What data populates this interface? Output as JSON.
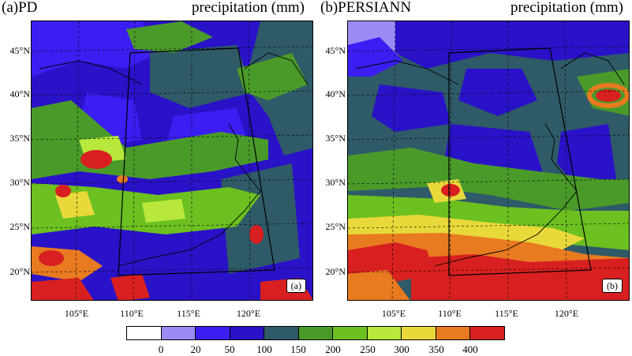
{
  "panels": [
    {
      "title": "(a)PD",
      "variable": "precipitation (mm)",
      "tag": "(a)"
    },
    {
      "title": "(b)PERSIANN",
      "variable": "precipitation (mm)",
      "tag": "(b)"
    }
  ],
  "lat_labels": [
    "45°N",
    "40°N",
    "35°N",
    "30°N",
    "25°N",
    "20°N"
  ],
  "lon_labels": [
    "105°E",
    "110°E",
    "115°E",
    "120°E"
  ],
  "colorbar": {
    "colors": [
      "#ffffff",
      "#9a8cf2",
      "#3b1ef2",
      "#2a12c8",
      "#2f5a68",
      "#4a9a2a",
      "#6cc020",
      "#b8e83c",
      "#e8d83a",
      "#e87a20",
      "#d82020"
    ],
    "labels": [
      "0",
      "20",
      "50",
      "100",
      "150",
      "200",
      "250",
      "300",
      "350",
      "400"
    ]
  }
}
